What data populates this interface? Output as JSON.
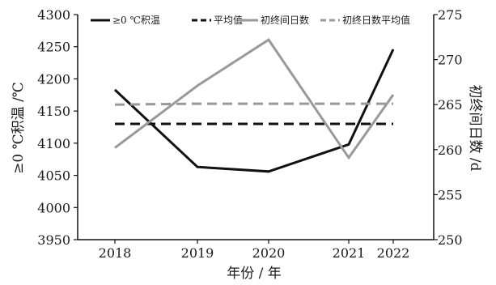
{
  "chart_data": {
    "type": "line",
    "x": [
      "2018",
      "2019",
      "2020",
      "2021",
      "2022"
    ],
    "xlabel": "年份 / 年",
    "ylabel_left": "≥0 ℃积温 /℃",
    "ylabel_right": "初终间日数 /d",
    "ylim_left": [
      3950,
      4300
    ],
    "yticks_left": [
      "3950",
      "4000",
      "4050",
      "4100",
      "4150",
      "4200",
      "4250",
      "4300"
    ],
    "ylim_right": [
      250,
      275
    ],
    "yticks_right": [
      "250",
      "255",
      "260",
      "265",
      "270",
      "275"
    ],
    "legend_position": "top",
    "series": [
      {
        "name": "≥0 ℃积温",
        "axis": "left",
        "color": "#111111",
        "dash": "solid",
        "values": [
          4183,
          4063,
          4056,
          4098,
          4246
        ]
      },
      {
        "name": "平均值",
        "axis": "left",
        "color": "#111111",
        "dash": "dashed",
        "values": [
          4130,
          4130,
          4130,
          4130,
          4130
        ]
      },
      {
        "name": "初终间日数",
        "axis": "right",
        "color": "#999999",
        "dash": "solid",
        "values": [
          260.2,
          267.1,
          272.2,
          259.1,
          266.1
        ]
      },
      {
        "name": "初终日数平均值",
        "axis": "right",
        "color": "#999999",
        "dash": "dashed",
        "values": [
          265,
          265.1,
          265.1,
          265.1,
          265.1
        ]
      }
    ]
  }
}
